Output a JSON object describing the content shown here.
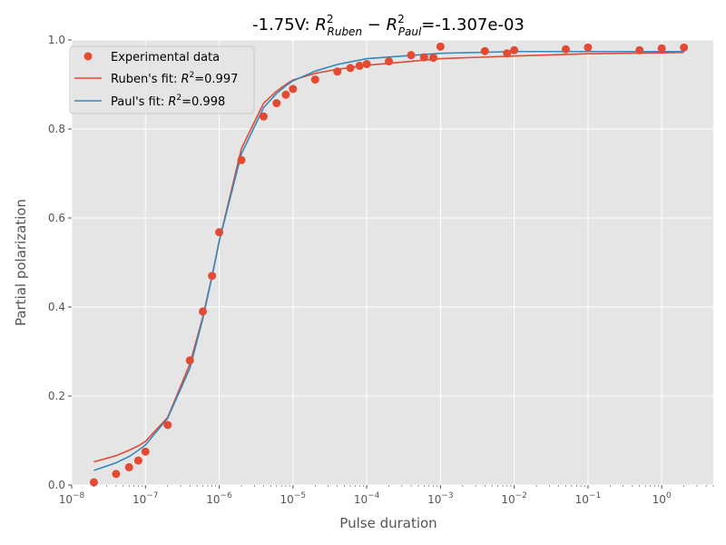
{
  "chart_data": {
    "type": "scatter",
    "title_parts": {
      "prefix": "-1.75V: ",
      "r1": "R",
      "r1_sup": "2",
      "r1_sub": "Ruben",
      "minus": " − ",
      "r2": "R",
      "r2_sup": "2",
      "r2_sub": "Paul",
      "suffix": "=-1.307e-03"
    },
    "xlabel": "Pulse duration",
    "ylabel": "Partial polarization",
    "xscale": "log",
    "xlim": [
      1e-08,
      5
    ],
    "ylim": [
      0,
      1.0
    ],
    "grid": true,
    "legend_position": "top-left",
    "x_tick_labels": [
      {
        "base": "10",
        "exp": "−8",
        "value": 1e-08
      },
      {
        "base": "10",
        "exp": "−7",
        "value": 1e-07
      },
      {
        "base": "10",
        "exp": "−6",
        "value": 1e-06
      },
      {
        "base": "10",
        "exp": "−5",
        "value": 1e-05
      },
      {
        "base": "10",
        "exp": "−4",
        "value": 0.0001
      },
      {
        "base": "10",
        "exp": "−3",
        "value": 0.001
      },
      {
        "base": "10",
        "exp": "−2",
        "value": 0.01
      },
      {
        "base": "10",
        "exp": "−1",
        "value": 0.1
      },
      {
        "base": "10",
        "exp": "0",
        "value": 1
      }
    ],
    "y_ticks": [
      0.0,
      0.2,
      0.4,
      0.6,
      0.8,
      1.0
    ],
    "y_tick_labels": [
      "0.0",
      "0.2",
      "0.4",
      "0.6",
      "0.8",
      "1.0"
    ],
    "legend": [
      {
        "kind": "marker",
        "label": "Experimental data",
        "color": "#E24A33"
      },
      {
        "kind": "line",
        "label_prefix": "Ruben's fit: ",
        "label_r": "R",
        "label_sup": "2",
        "label_suffix": "=0.997",
        "color": "#E24A33"
      },
      {
        "kind": "line",
        "label_prefix": "Paul's fit: ",
        "label_r": "R",
        "label_sup": "2",
        "label_suffix": "=0.998",
        "color": "#348ABD"
      }
    ],
    "series": [
      {
        "name": "Experimental data",
        "kind": "scatter",
        "color": "#E24A33",
        "x": [
          2e-08,
          4e-08,
          6e-08,
          8e-08,
          1e-07,
          2e-07,
          4e-07,
          6e-07,
          8e-07,
          1e-06,
          2e-06,
          4e-06,
          6e-06,
          8e-06,
          1e-05,
          2e-05,
          4e-05,
          6e-05,
          8e-05,
          0.0001,
          0.0002,
          0.0004,
          0.0006,
          0.0008,
          0.001,
          0.004,
          0.008,
          0.01,
          0.05,
          0.1,
          0.5,
          1,
          2
        ],
        "y": [
          0.006,
          0.025,
          0.04,
          0.055,
          0.075,
          0.135,
          0.28,
          0.39,
          0.47,
          0.568,
          0.73,
          0.828,
          0.858,
          0.877,
          0.89,
          0.911,
          0.929,
          0.937,
          0.942,
          0.946,
          0.952,
          0.966,
          0.961,
          0.96,
          0.985,
          0.975,
          0.97,
          0.977,
          0.979,
          0.983,
          0.977,
          0.981,
          0.983
        ]
      },
      {
        "name": "Ruben's fit",
        "kind": "line",
        "color": "#E24A33",
        "x": [
          2e-08,
          4e-08,
          6e-08,
          8e-08,
          1e-07,
          2e-07,
          4e-07,
          6e-07,
          8e-07,
          1e-06,
          2e-06,
          4e-06,
          6e-06,
          8e-06,
          1e-05,
          2e-05,
          4e-05,
          0.0001,
          0.001,
          0.01,
          0.1,
          1,
          2
        ],
        "y": [
          0.052,
          0.066,
          0.078,
          0.088,
          0.098,
          0.152,
          0.272,
          0.378,
          0.47,
          0.548,
          0.756,
          0.858,
          0.885,
          0.9,
          0.91,
          0.925,
          0.934,
          0.943,
          0.958,
          0.964,
          0.969,
          0.971,
          0.972
        ]
      },
      {
        "name": "Paul's fit",
        "kind": "line",
        "color": "#348ABD",
        "x": [
          2e-08,
          4e-08,
          6e-08,
          8e-08,
          1e-07,
          2e-07,
          4e-07,
          6e-07,
          8e-07,
          1e-06,
          2e-06,
          4e-06,
          6e-06,
          8e-06,
          1e-05,
          2e-05,
          4e-05,
          0.0001,
          0.001,
          0.01,
          0.1,
          1,
          2
        ],
        "y": [
          0.033,
          0.05,
          0.064,
          0.078,
          0.09,
          0.15,
          0.262,
          0.374,
          0.468,
          0.548,
          0.744,
          0.848,
          0.88,
          0.897,
          0.908,
          0.93,
          0.945,
          0.958,
          0.97,
          0.974,
          0.974,
          0.974,
          0.974
        ]
      }
    ]
  }
}
